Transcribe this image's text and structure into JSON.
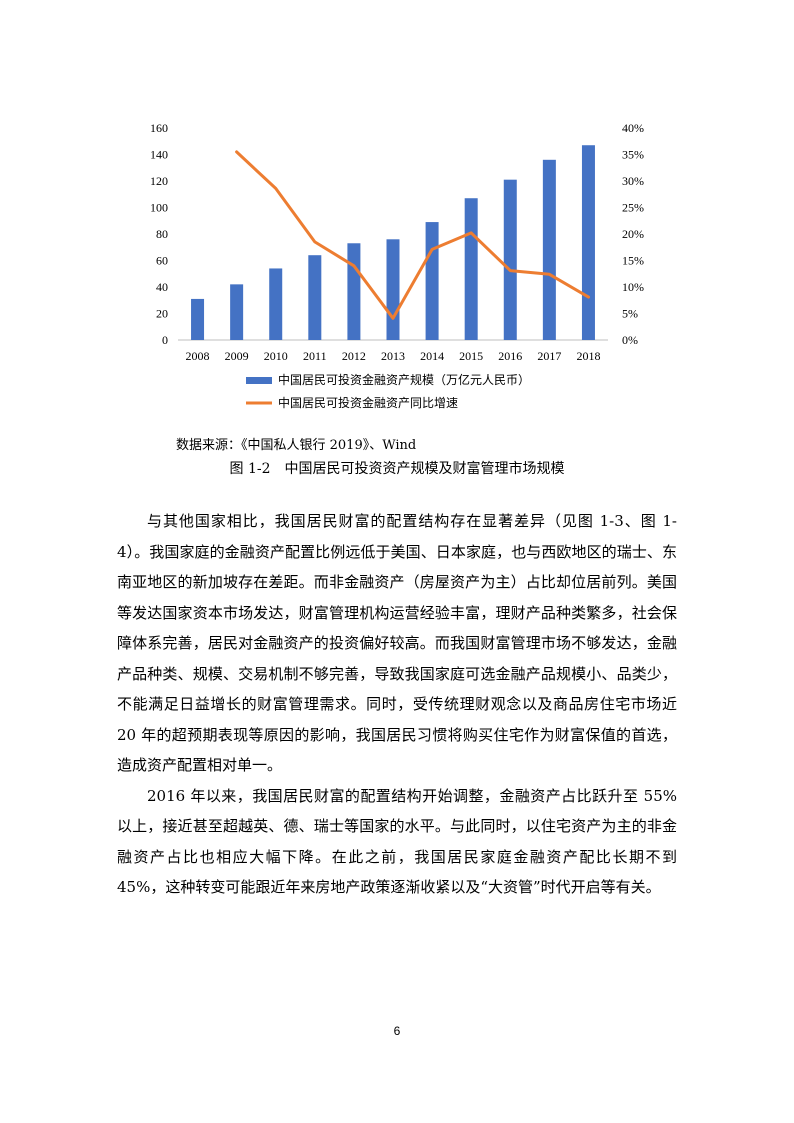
{
  "chart_data": {
    "type": "bar",
    "categories": [
      "2008",
      "2009",
      "2010",
      "2011",
      "2012",
      "2013",
      "2014",
      "2015",
      "2016",
      "2017",
      "2018"
    ],
    "series": [
      {
        "name": "中国居民可投资金融资产规模（万亿元人民币）",
        "type": "bar",
        "axis": "left",
        "values": [
          31,
          42,
          54,
          64,
          73,
          76,
          89,
          107,
          121,
          136,
          147
        ],
        "color": "#4472C4"
      },
      {
        "name": "中国居民可投资金融资产同比增速",
        "type": "line",
        "axis": "right",
        "values": [
          null,
          0.355,
          0.286,
          0.185,
          0.14,
          0.041,
          0.171,
          0.202,
          0.131,
          0.124,
          0.081
        ],
        "color": "#ED7D31"
      }
    ],
    "y_left": {
      "min": 0,
      "max": 160,
      "step": 20,
      "ticks": [
        "0",
        "20",
        "40",
        "60",
        "80",
        "100",
        "120",
        "140",
        "160"
      ]
    },
    "y_right": {
      "min": 0,
      "max": 0.4,
      "step": 0.05,
      "ticks": [
        "0%",
        "5%",
        "10%",
        "15%",
        "20%",
        "25%",
        "30%",
        "35%",
        "40%"
      ]
    },
    "legend_position": "bottom",
    "grid": false
  },
  "source": "数据来源：《中国私人银行 2019》、Wind",
  "caption": "图 1-2　中国居民可投资资产规模及财富管理市场规模",
  "paragraphs": [
    "与其他国家相比，我国居民财富的配置结构存在显著差异（见图 1-3、图 1-4）。我国家庭的金融资产配置比例远低于美国、日本家庭，也与西欧地区的瑞士、东南亚地区的新加坡存在差距。而非金融资产（房屋资产为主）占比却位居前列。美国等发达国家资本市场发达，财富管理机构运营经验丰富，理财产品种类繁多，社会保障体系完善，居民对金融资产的投资偏好较高。而我国财富管理市场不够发达，金融产品种类、规模、交易机制不够完善，导致我国家庭可选金融产品规模小、品类少，不能满足日益增长的财富管理需求。同时，受传统理财观念以及商品房住宅市场近 20 年的超预期表现等原因的影响，我国居民习惯将购买住宅作为财富保值的首选，造成资产配置相对单一。",
    "2016 年以来，我国居民财富的配置结构开始调整，金融资产占比跃升至 55%以上，接近甚至超越英、德、瑞士等国家的水平。与此同时，以住宅资产为主的非金融资产占比也相应大幅下降。在此之前，我国居民家庭金融资产配比长期不到 45%，这种转变可能跟近年来房地产政策逐渐收紧以及“大资管”时代开启等有关。"
  ],
  "page_number": "6"
}
